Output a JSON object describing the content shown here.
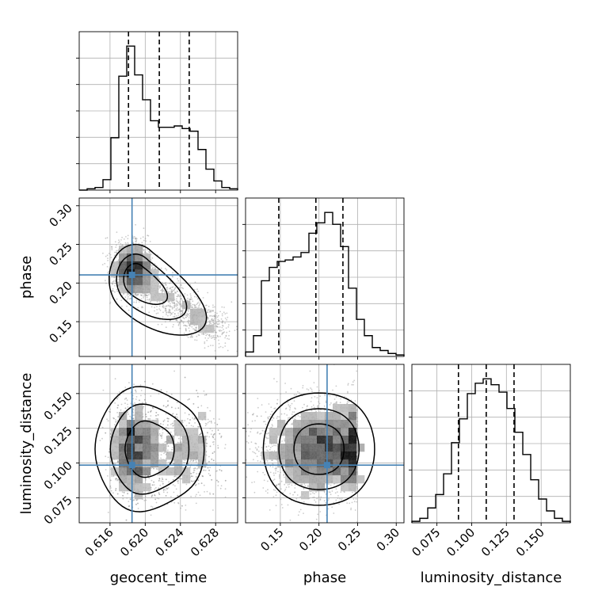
{
  "chart_data": {
    "type": "corner",
    "parameters": [
      "geocent_time",
      "phase",
      "luminosity_distance"
    ],
    "axis_labels": {
      "geocent_time": "geocent_time",
      "phase": "phase",
      "luminosity_distance": "luminosity_distance"
    },
    "ranges": {
      "geocent_time": [
        0.6125,
        0.6305
      ],
      "phase": [
        0.105,
        0.31
      ],
      "luminosity_distance": [
        0.057,
        0.171
      ]
    },
    "ticks": {
      "geocent_time": [
        "0.616",
        "0.620",
        "0.624",
        "0.628"
      ],
      "phase": [
        "0.15",
        "0.20",
        "0.25",
        "0.30"
      ],
      "luminosity_distance": [
        "0.075",
        "0.100",
        "0.125",
        "0.150"
      ]
    },
    "injection_values": {
      "geocent_time": 0.6185,
      "phase": 0.2105,
      "luminosity_distance": 0.0985
    },
    "quantiles": {
      "geocent_time": [
        0.6181,
        0.6216,
        0.625
      ],
      "phase": [
        0.148,
        0.196,
        0.231
      ],
      "luminosity_distance": [
        0.0905,
        0.1105,
        0.1305
      ]
    },
    "histograms": {
      "geocent_time": {
        "edges": [
          0.6125,
          0.6134,
          0.6143,
          0.6152,
          0.6161,
          0.617,
          0.6179,
          0.6188,
          0.6197,
          0.6206,
          0.6215,
          0.6224,
          0.6233,
          0.6242,
          0.6251,
          0.626,
          0.6269,
          0.6278,
          0.6287,
          0.6296,
          0.6305
        ],
        "counts": [
          0,
          1,
          2,
          8,
          40,
          87,
          110,
          88,
          69,
          53,
          48,
          48,
          49,
          47,
          45,
          31,
          16,
          7,
          2,
          1
        ]
      },
      "phase": {
        "edges": [
          0.105,
          0.11525,
          0.1255,
          0.13575,
          0.146,
          0.15625,
          0.1665,
          0.17675,
          0.187,
          0.19725,
          0.2075,
          0.21775,
          0.228,
          0.23825,
          0.2485,
          0.25875,
          0.269,
          0.27925,
          0.2895,
          0.29975,
          0.31
        ],
        "counts": [
          3,
          14,
          51,
          60,
          64,
          65,
          67,
          70,
          83,
          90,
          97,
          89,
          74,
          46,
          25,
          14,
          6,
          4,
          2,
          1
        ]
      },
      "luminosity_distance": {
        "edges": [
          0.057,
          0.0627,
          0.0684,
          0.0741,
          0.0798,
          0.0855,
          0.0912,
          0.0969,
          0.1026,
          0.1083,
          0.114,
          0.1197,
          0.1254,
          0.1311,
          0.1368,
          0.1425,
          0.1482,
          0.1539,
          0.1596,
          0.1653,
          0.171
        ],
        "counts": [
          1,
          3,
          10,
          19,
          33,
          54,
          70,
          87,
          94,
          97,
          93,
          88,
          77,
          61,
          46,
          29,
          16,
          8,
          3,
          1
        ]
      }
    },
    "grid": true,
    "colors": {
      "hist": "#000000",
      "quantile": "#000000",
      "truth": "#4682b4",
      "contour": "#000000",
      "grid": "#b0b0b0"
    }
  }
}
